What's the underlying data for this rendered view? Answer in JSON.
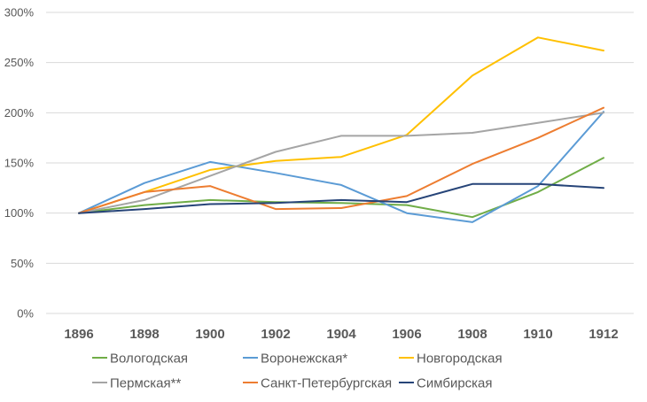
{
  "chart_data": {
    "type": "line",
    "title": "",
    "xlabel": "",
    "ylabel": "",
    "x": [
      "1896",
      "1898",
      "1900",
      "1902",
      "1904",
      "1906",
      "1908",
      "1910",
      "1912"
    ],
    "ylim": [
      0,
      300
    ],
    "yticks": [
      0,
      50,
      100,
      150,
      200,
      250,
      300
    ],
    "ytick_labels": [
      "0%",
      "50%",
      "100%",
      "150%",
      "200%",
      "250%",
      "300%"
    ],
    "grid": "horizontal",
    "legend_position": "bottom",
    "series": [
      {
        "name": "Вологодская",
        "color": "#70ad47",
        "values": [
          100,
          108,
          113,
          111,
          110,
          108,
          96,
          121,
          155
        ]
      },
      {
        "name": "Воронежская*",
        "color": "#5b9bd5",
        "values": [
          100,
          130,
          151,
          140,
          128,
          100,
          91,
          127,
          201
        ]
      },
      {
        "name": "Новгородская",
        "color": "#ffc000",
        "values": [
          100,
          121,
          143,
          152,
          156,
          178,
          237,
          275,
          262
        ]
      },
      {
        "name": "Пермская**",
        "color": "#a5a5a5",
        "values": [
          100,
          113,
          137,
          161,
          177,
          177,
          180,
          190,
          200
        ]
      },
      {
        "name": "Санкт-Петербургская",
        "color": "#ed7d31",
        "values": [
          100,
          121,
          127,
          104,
          105,
          117,
          149,
          175,
          205
        ]
      },
      {
        "name": "Симбирская",
        "color": "#264478",
        "values": [
          100,
          104,
          109,
          110,
          113,
          111,
          129,
          129,
          125
        ]
      }
    ]
  }
}
